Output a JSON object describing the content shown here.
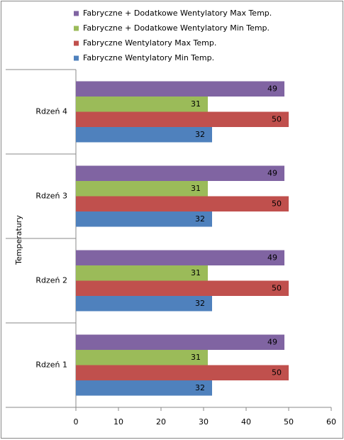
{
  "chart_data": {
    "type": "hbar",
    "y_label": "Temperatury",
    "categories": [
      "Rdzeń 1",
      "Rdzeń 2",
      "Rdzeń 3",
      "Rdzeń 4"
    ],
    "series": [
      {
        "name": "Fabryczne + Dodatkowe  Wentylatory Max Temp.",
        "color": "#8064a2",
        "values": [
          49,
          49,
          49,
          49
        ]
      },
      {
        "name": "Fabryczne + Dodatkowe  Wentylatory Min Temp.",
        "color": "#9bbb59",
        "values": [
          31,
          31,
          31,
          31
        ]
      },
      {
        "name": "Fabryczne Wentylatory Max Temp.",
        "color": "#c0504d",
        "values": [
          50,
          50,
          50,
          50
        ]
      },
      {
        "name": "Fabryczne Wentylatory Min Temp.",
        "color": "#4f81bd",
        "values": [
          32,
          32,
          32,
          32
        ]
      }
    ],
    "xlim": [
      0,
      60
    ],
    "xticks": [
      0,
      10,
      20,
      30,
      40,
      50,
      60
    ],
    "legend": "top"
  }
}
